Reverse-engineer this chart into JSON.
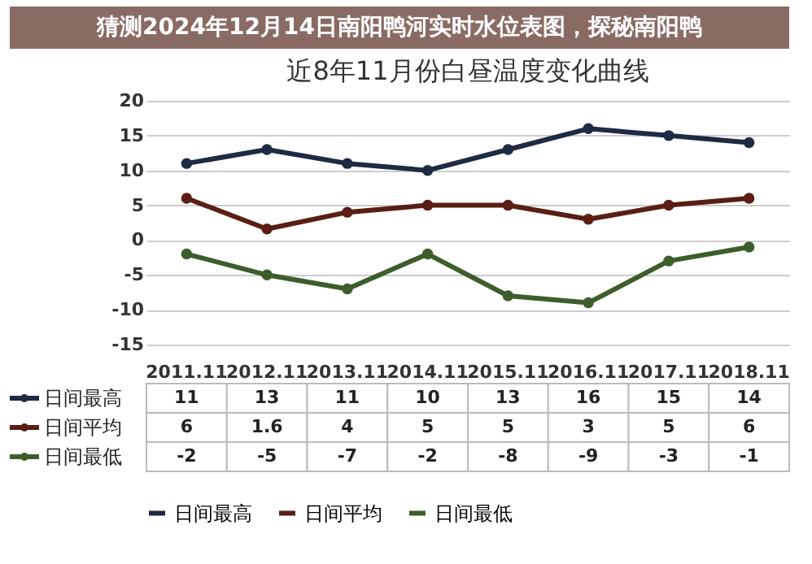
{
  "chart_data": {
    "type": "line",
    "title": "近8年11月份白昼温度变化曲线",
    "annotations": [
      "猜测2024年12月14日南阳鸭河实时水位表图，探秘南阳鸭"
    ],
    "categories": [
      "2011.11",
      "2012.11",
      "2013.11",
      "2014.11",
      "2015.11",
      "2016.11",
      "2017.11",
      "2018.11"
    ],
    "series": [
      {
        "name": "日间最高",
        "color": "#1f2a44",
        "values": [
          11,
          13,
          11,
          10,
          13,
          16,
          15,
          14
        ]
      },
      {
        "name": "日间平均",
        "color": "#5a1e14",
        "values": [
          6,
          1.6,
          4,
          5,
          5,
          3,
          5,
          6
        ]
      },
      {
        "name": "日间最低",
        "color": "#3d5e2c",
        "values": [
          -2,
          -5,
          -7,
          -2,
          -8,
          -9,
          -3,
          -1
        ]
      }
    ],
    "ylim": [
      -15,
      20
    ],
    "yticks": [
      -15,
      -10,
      -5,
      0,
      5,
      10,
      15,
      20
    ],
    "grid": "y",
    "legend": "bottom",
    "marker": "circle",
    "line_style": "solid",
    "data_labels": true
  }
}
